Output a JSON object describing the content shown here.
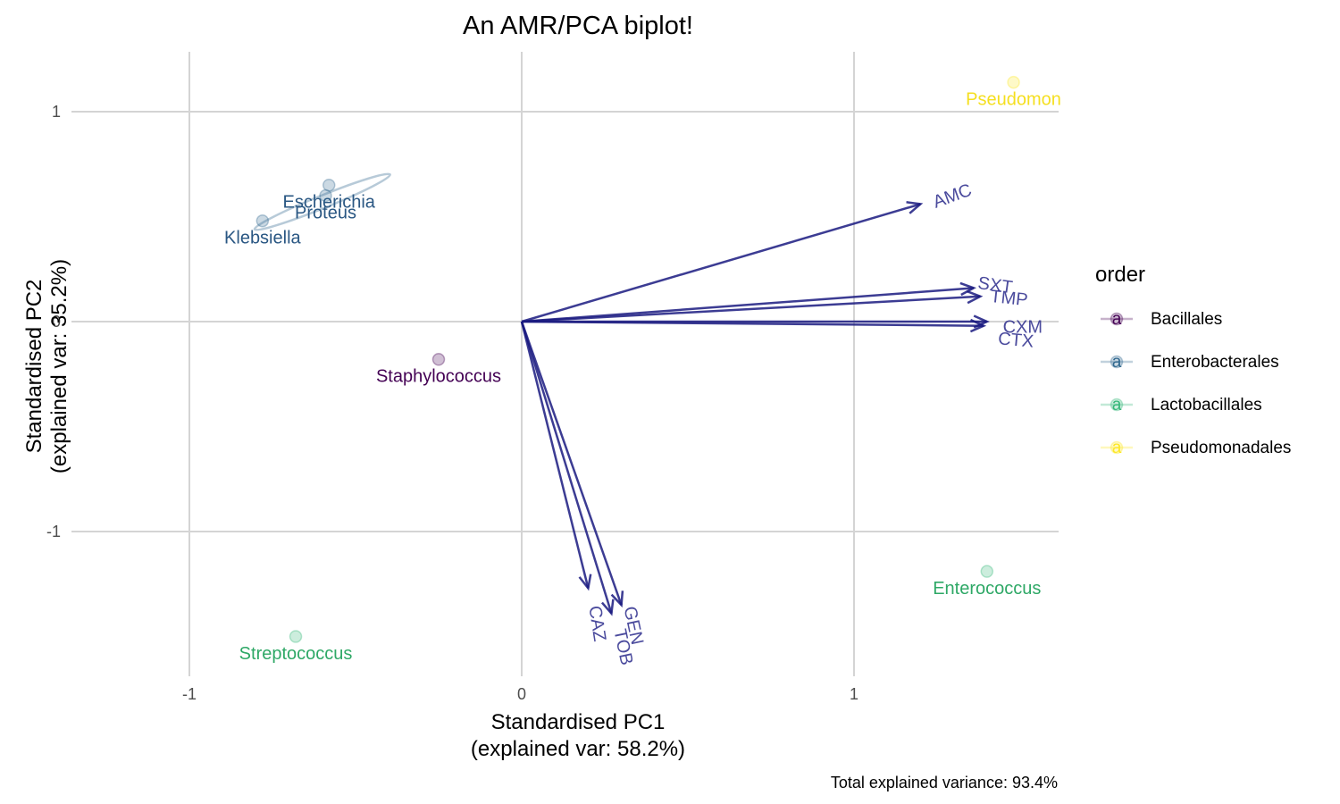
{
  "chart_data": {
    "type": "scatter",
    "title": "An AMR/PCA biplot!",
    "xlabel": [
      "Standardised PC1",
      "(explained var: 58.2%)"
    ],
    "ylabel": [
      "Standardised PC2",
      "(explained var: 35.2%)"
    ],
    "caption": "Total explained variance: 93.4%",
    "xlim": [
      -1.0,
      1.0
    ],
    "ylim": [
      -1.0,
      1.0
    ],
    "x_ticks": [
      {
        "value": -1,
        "label": "-1"
      },
      {
        "value": 0,
        "label": "0"
      },
      {
        "value": 1,
        "label": "1"
      }
    ],
    "y_ticks": [
      {
        "value": 1,
        "label": "1"
      },
      {
        "value": 0,
        "label": "0"
      },
      {
        "value": -1,
        "label": "-1"
      }
    ],
    "grid": true,
    "points": [
      {
        "label": "Pseudomon",
        "order": "Pseudomonadales",
        "x": 1.48,
        "y": 1.14
      },
      {
        "label": "Escherichia",
        "order": "Enterobacterales",
        "x": -0.58,
        "y": 0.65
      },
      {
        "label": "Proteus",
        "order": "Enterobacterales",
        "x": -0.59,
        "y": 0.6
      },
      {
        "label": "Klebsiella",
        "order": "Enterobacterales",
        "x": -0.78,
        "y": 0.48
      },
      {
        "label": "Staphylococcus",
        "order": "Bacillales",
        "x": -0.25,
        "y": -0.18
      },
      {
        "label": "Enterococcus",
        "order": "Lactobacillales",
        "x": 1.4,
        "y": -1.19
      },
      {
        "label": "Streptococcus",
        "order": "Lactobacillales",
        "x": -0.68,
        "y": -1.5
      }
    ],
    "loadings": [
      {
        "label": "AMC",
        "x": 1.2,
        "y": 0.56
      },
      {
        "label": "SXT",
        "x": 1.36,
        "y": 0.16
      },
      {
        "label": "TMP",
        "x": 1.38,
        "y": 0.12
      },
      {
        "label": "CXM",
        "x": 1.4,
        "y": 0.0
      },
      {
        "label": "CTX",
        "x": 1.39,
        "y": -0.02
      },
      {
        "label": "CAZ",
        "x": 0.2,
        "y": -1.27
      },
      {
        "label": "TOB",
        "x": 0.27,
        "y": -1.39
      },
      {
        "label": "GEN",
        "x": 0.3,
        "y": -1.35
      }
    ],
    "ellipse": {
      "order": "Enterobacterales",
      "center": [
        -0.6,
        0.57
      ],
      "rx": 0.22,
      "ry": 0.03,
      "angle_deg": 22
    },
    "legend": {
      "title": "order",
      "position": "right",
      "key_glyph": "a",
      "entries": [
        {
          "name": "Bacillales",
          "color": "#440154"
        },
        {
          "name": "Enterobacterales",
          "color": "#31688E"
        },
        {
          "name": "Lactobacillales",
          "color": "#35B779"
        },
        {
          "name": "Pseudomonadales",
          "color": "#FDE725"
        }
      ]
    },
    "arrow_color": "#1a1a80",
    "label_colors": {
      "Bacillales": "#440154",
      "Enterobacterales": "#2a5783",
      "Lactobacillales": "#2ea866",
      "Pseudomonadales": "#f5df1f"
    }
  }
}
